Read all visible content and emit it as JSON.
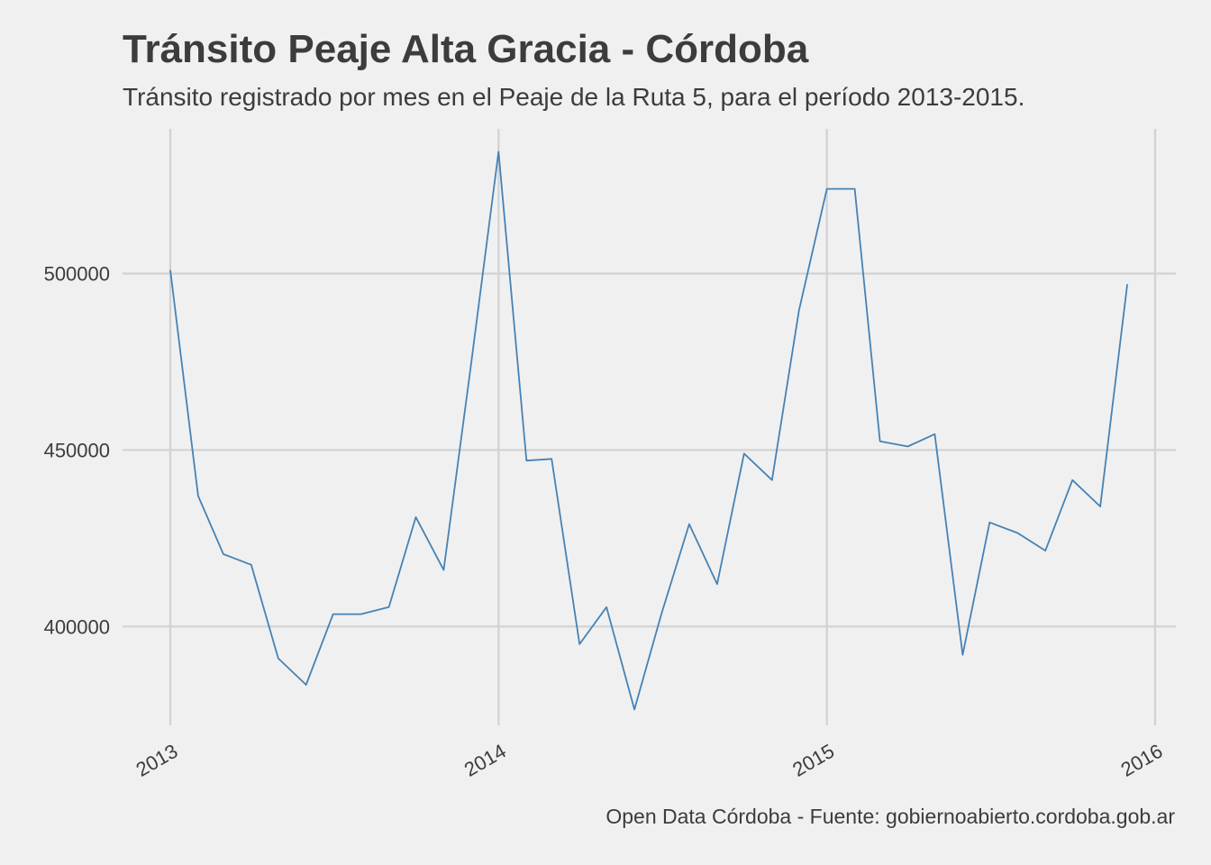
{
  "chart_data": {
    "type": "line",
    "title": "Tránsito Peaje Alta Gracia - Córdoba",
    "subtitle": "Tránsito registrado por mes en el Peaje de la Ruta 5, para el período 2013-2015.",
    "caption": "Open Data Córdoba - Fuente: gobiernoabierto.cordoba.gob.ar",
    "xlabel": "",
    "ylabel": "",
    "x_ticks": [
      "2013",
      "2014",
      "2015",
      "2016"
    ],
    "y_ticks": [
      "400000",
      "450000",
      "500000"
    ],
    "xlim": [
      "2013-01-01",
      "2016-01-01"
    ],
    "ylim": [
      372000,
      541000
    ],
    "grid": true,
    "line_color": "#4682b4",
    "series": [
      {
        "x": [
          "2013-01-01",
          "2013-02-01",
          "2013-03-01",
          "2013-04-01",
          "2013-05-01",
          "2013-06-01",
          "2013-07-01",
          "2013-08-01",
          "2013-09-01",
          "2013-10-01",
          "2013-11-01",
          "2013-12-01",
          "2014-01-01",
          "2014-02-01",
          "2014-03-01",
          "2014-04-01",
          "2014-05-01",
          "2014-06-01",
          "2014-07-01",
          "2014-08-01",
          "2014-09-01",
          "2014-10-01",
          "2014-11-01",
          "2014-12-01",
          "2015-01-01",
          "2015-02-01",
          "2015-03-01",
          "2015-04-01",
          "2015-05-01",
          "2015-06-01",
          "2015-07-01",
          "2015-08-01",
          "2015-09-01",
          "2015-10-01",
          "2015-11-01",
          "2015-12-01"
        ],
        "values": [
          501000,
          437000,
          420500,
          417500,
          391000,
          383500,
          403500,
          403500,
          405500,
          431000,
          416000,
          473500,
          534500,
          447000,
          447500,
          395000,
          405500,
          376500,
          403500,
          429000,
          412000,
          449000,
          441500,
          489500,
          524000,
          524000,
          452500,
          451000,
          454500,
          392000,
          429500,
          426500,
          421500,
          441500,
          434000,
          497000
        ]
      }
    ]
  }
}
